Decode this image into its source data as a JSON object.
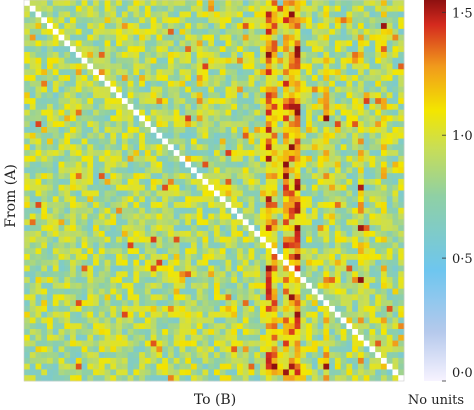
{
  "chart_data": {
    "type": "heatmap",
    "title": "",
    "xlabel": "To (B)",
    "ylabel": "From (A)",
    "rows": 66,
    "cols": 66,
    "diagonal": "white (no values on diagonal)",
    "value_range": [
      0.0,
      1.5
    ],
    "colorbar": {
      "ticks": [
        "1·5",
        "1·0",
        "0·5",
        "0·0"
      ],
      "tick_values": [
        1.5,
        1.0,
        0.5,
        0.0
      ],
      "unit_label": "No units",
      "colors": [
        {
          "v": 0.0,
          "c": "#f7f3ff"
        },
        {
          "v": 0.2,
          "c": "#b5c9ec"
        },
        {
          "v": 0.45,
          "c": "#6ec6ef"
        },
        {
          "v": 0.75,
          "c": "#8fd0a5"
        },
        {
          "v": 0.95,
          "c": "#c9de55"
        },
        {
          "v": 1.1,
          "c": "#f3e600"
        },
        {
          "v": 1.28,
          "c": "#f19a1c"
        },
        {
          "v": 1.45,
          "c": "#d42a1e"
        },
        {
          "v": 1.55,
          "c": "#8e1010"
        }
      ]
    },
    "base_level": 0.85,
    "column_emphasis": [
      {
        "col": 42,
        "value": 1.25
      },
      {
        "col": 43,
        "value": 1.15
      },
      {
        "col": 45,
        "value": 1.2
      },
      {
        "col": 46,
        "value": 1.15
      },
      {
        "col": 47,
        "value": 1.3
      },
      {
        "col": 52,
        "value": 1.05
      },
      {
        "col": 58,
        "value": 1.05
      },
      {
        "col": 62,
        "value": 1.0
      }
    ]
  }
}
